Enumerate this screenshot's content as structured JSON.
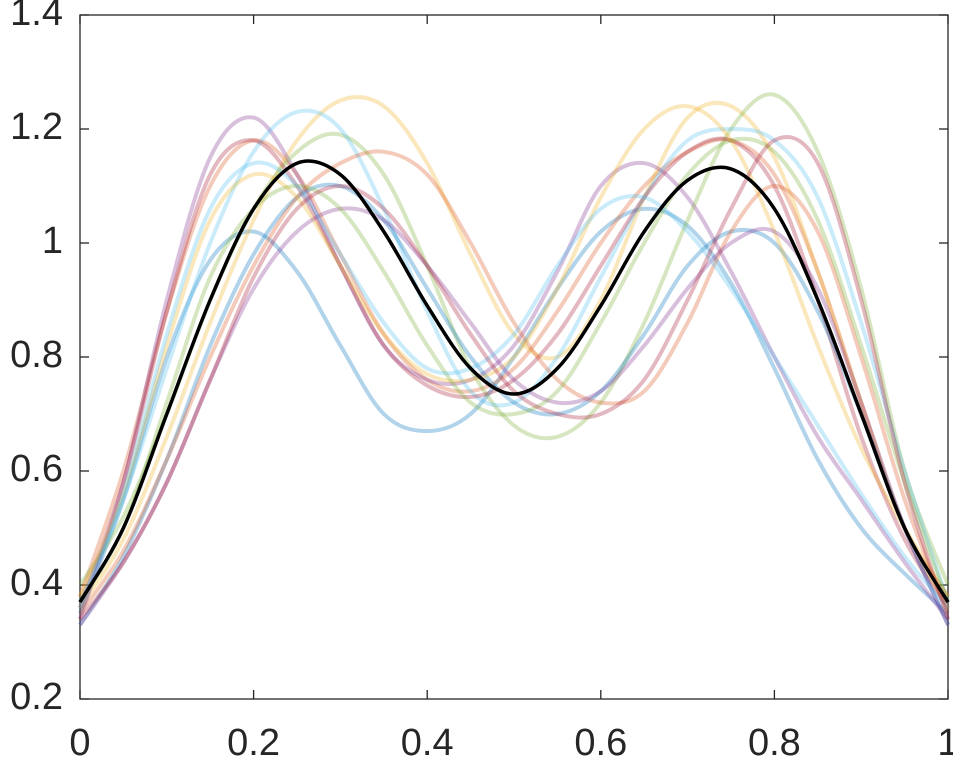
{
  "chart_data": {
    "type": "line",
    "x": [
      0,
      0.05,
      0.1,
      0.15,
      0.2,
      0.25,
      0.3,
      0.35,
      0.4,
      0.45,
      0.5,
      0.55,
      0.6,
      0.65,
      0.7,
      0.75,
      0.8,
      0.85,
      0.9,
      0.95,
      1
    ],
    "series": [
      {
        "color": "#0072BD",
        "alpha": 0.3,
        "values": [
          0.35,
          0.55,
          0.8,
          0.97,
          1.02,
          0.95,
          0.82,
          0.7,
          0.67,
          0.7,
          0.8,
          0.92,
          1.02,
          1.06,
          1.03,
          0.93,
          0.78,
          0.62,
          0.5,
          0.42,
          0.35
        ]
      },
      {
        "color": "#D95319",
        "alpha": 0.3,
        "values": [
          0.38,
          0.6,
          0.88,
          1.1,
          1.18,
          1.12,
          0.98,
          0.84,
          0.76,
          0.74,
          0.78,
          0.88,
          1.0,
          1.1,
          1.16,
          1.18,
          1.12,
          0.95,
          0.72,
          0.5,
          0.38
        ]
      },
      {
        "color": "#EDB120",
        "alpha": 0.3,
        "values": [
          0.36,
          0.48,
          0.66,
          0.86,
          1.04,
          1.18,
          1.25,
          1.24,
          1.14,
          0.98,
          0.84,
          0.8,
          0.9,
          1.08,
          1.22,
          1.24,
          1.15,
          0.95,
          0.72,
          0.5,
          0.36
        ]
      },
      {
        "color": "#7E2F8E",
        "alpha": 0.3,
        "values": [
          0.34,
          0.58,
          0.9,
          1.15,
          1.22,
          1.12,
          0.96,
          0.82,
          0.76,
          0.76,
          0.82,
          0.95,
          1.1,
          1.14,
          1.08,
          0.95,
          0.8,
          0.66,
          0.55,
          0.44,
          0.34
        ]
      },
      {
        "color": "#77AC30",
        "alpha": 0.3,
        "values": [
          0.4,
          0.52,
          0.7,
          0.9,
          1.06,
          1.16,
          1.19,
          1.12,
          0.96,
          0.78,
          0.68,
          0.66,
          0.72,
          0.86,
          1.04,
          1.2,
          1.26,
          1.16,
          0.92,
          0.6,
          0.4
        ]
      },
      {
        "color": "#4DBEEE",
        "alpha": 0.3,
        "values": [
          0.37,
          0.55,
          0.78,
          1.0,
          1.16,
          1.23,
          1.2,
          1.06,
          0.88,
          0.74,
          0.72,
          0.8,
          0.94,
          1.08,
          1.18,
          1.2,
          1.18,
          1.08,
          0.86,
          0.6,
          0.37
        ]
      },
      {
        "color": "#A2142F",
        "alpha": 0.3,
        "values": [
          0.36,
          0.58,
          0.88,
          1.12,
          1.18,
          1.1,
          0.96,
          0.82,
          0.75,
          0.73,
          0.76,
          0.84,
          0.96,
          1.08,
          1.16,
          1.18,
          1.1,
          0.9,
          0.66,
          0.48,
          0.36
        ]
      },
      {
        "color": "#0072BD",
        "alpha": 0.3,
        "values": [
          0.33,
          0.45,
          0.62,
          0.82,
          0.98,
          1.08,
          1.1,
          1.04,
          0.92,
          0.8,
          0.72,
          0.7,
          0.74,
          0.84,
          0.96,
          1.02,
          1.0,
          0.88,
          0.7,
          0.5,
          0.33
        ]
      },
      {
        "color": "#D95319",
        "alpha": 0.3,
        "values": [
          0.35,
          0.46,
          0.62,
          0.8,
          0.96,
          1.08,
          1.14,
          1.16,
          1.12,
          1.0,
          0.86,
          0.76,
          0.72,
          0.74,
          0.86,
          1.02,
          1.1,
          1.02,
          0.8,
          0.55,
          0.35
        ]
      },
      {
        "color": "#EDB120",
        "alpha": 0.3,
        "values": [
          0.38,
          0.56,
          0.82,
          1.04,
          1.12,
          1.08,
          0.96,
          0.84,
          0.77,
          0.76,
          0.8,
          0.92,
          1.08,
          1.2,
          1.24,
          1.18,
          1.02,
          0.82,
          0.64,
          0.5,
          0.38
        ]
      },
      {
        "color": "#7E2F8E",
        "alpha": 0.3,
        "values": [
          0.33,
          0.44,
          0.58,
          0.76,
          0.92,
          1.02,
          1.06,
          1.04,
          0.96,
          0.86,
          0.76,
          0.72,
          0.74,
          0.82,
          0.92,
          1.0,
          1.02,
          0.92,
          0.72,
          0.5,
          0.33
        ]
      },
      {
        "color": "#77AC30",
        "alpha": 0.3,
        "values": [
          0.37,
          0.5,
          0.72,
          0.94,
          1.06,
          1.1,
          1.06,
          0.95,
          0.82,
          0.72,
          0.7,
          0.74,
          0.86,
          1.0,
          1.12,
          1.18,
          1.16,
          1.04,
          0.82,
          0.58,
          0.37
        ]
      },
      {
        "color": "#4DBEEE",
        "alpha": 0.3,
        "values": [
          0.36,
          0.56,
          0.84,
          1.06,
          1.14,
          1.1,
          0.98,
          0.86,
          0.78,
          0.78,
          0.84,
          0.96,
          1.06,
          1.08,
          1.02,
          0.92,
          0.8,
          0.68,
          0.56,
          0.45,
          0.36
        ]
      },
      {
        "color": "#A2142F",
        "alpha": 0.3,
        "values": [
          0.34,
          0.44,
          0.58,
          0.76,
          0.94,
          1.06,
          1.1,
          1.06,
          0.96,
          0.84,
          0.74,
          0.7,
          0.7,
          0.76,
          0.9,
          1.06,
          1.18,
          1.14,
          0.9,
          0.58,
          0.34
        ]
      },
      {
        "color": "#000000",
        "alpha": 1,
        "values": [
          0.37,
          0.5,
          0.7,
          0.9,
          1.06,
          1.14,
          1.12,
          1.02,
          0.89,
          0.78,
          0.735,
          0.78,
          0.89,
          1.02,
          1.11,
          1.13,
          1.06,
          0.9,
          0.7,
          0.5,
          0.37
        ]
      }
    ],
    "xlim": [
      0,
      1
    ],
    "xticks": [
      0,
      0.2,
      0.4,
      0.6,
      0.8,
      1
    ],
    "ylim": [
      0.2,
      1.4
    ],
    "yticks": [
      0.2,
      0.4,
      0.6,
      0.8,
      1,
      1.2,
      1.4
    ],
    "grid": false
  }
}
